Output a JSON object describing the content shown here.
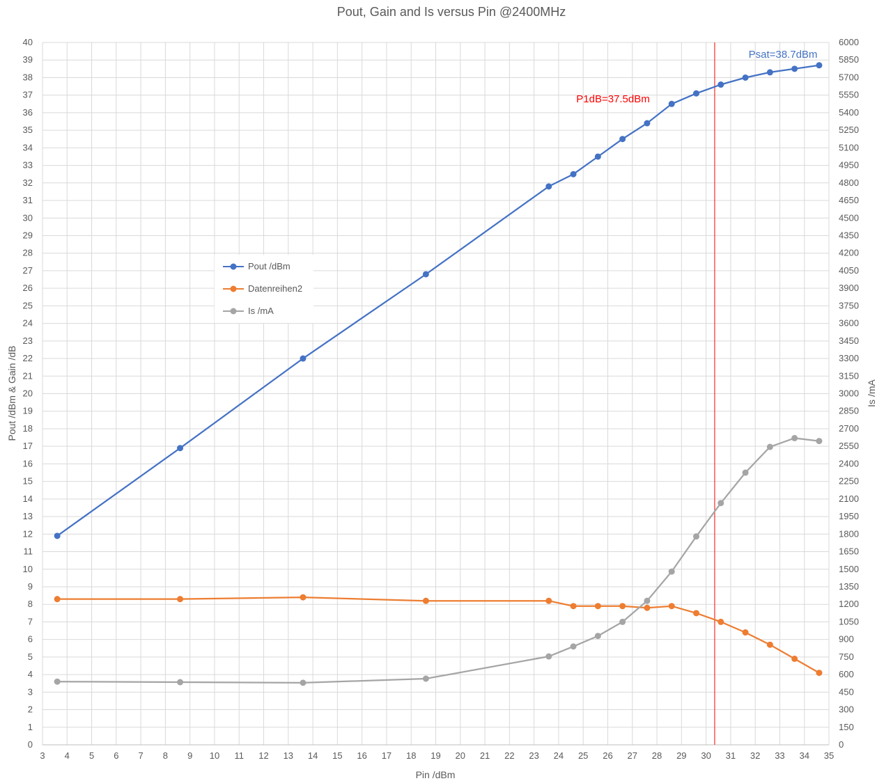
{
  "chart_data": {
    "type": "line",
    "title": "Pout, Gain and Is versus Pin @2400MHz",
    "xlabel": "Pin /dBm",
    "ylabel": "Pout /dBm & Gain /dB",
    "y2label": "Is /mA",
    "xlim": [
      3,
      35
    ],
    "ylim": [
      0,
      40
    ],
    "y2lim": [
      0,
      6000
    ],
    "x_ticks": [
      "3",
      "4",
      "5",
      "6",
      "7",
      "8",
      "9",
      "10",
      "11",
      "12",
      "13",
      "14",
      "15",
      "16",
      "17",
      "18",
      "19",
      "20",
      "21",
      "22",
      "23",
      "24",
      "25",
      "26",
      "27",
      "28",
      "29",
      "30",
      "31",
      "32",
      "33",
      "34",
      "35"
    ],
    "y_ticks": [
      "0",
      "1",
      "2",
      "3",
      "4",
      "5",
      "6",
      "7",
      "8",
      "9",
      "10",
      "11",
      "12",
      "13",
      "14",
      "15",
      "16",
      "17",
      "18",
      "19",
      "20",
      "21",
      "22",
      "23",
      "24",
      "25",
      "26",
      "27",
      "28",
      "29",
      "30",
      "31",
      "32",
      "33",
      "34",
      "35",
      "36",
      "37",
      "38",
      "39",
      "40"
    ],
    "y2_ticks": [
      "0",
      "150",
      "300",
      "450",
      "600",
      "750",
      "900",
      "1050",
      "1200",
      "1350",
      "1500",
      "1650",
      "1800",
      "1950",
      "2100",
      "2250",
      "2400",
      "2550",
      "2700",
      "2850",
      "3000",
      "3150",
      "3300",
      "3450",
      "3600",
      "3750",
      "3900",
      "4050",
      "4200",
      "4350",
      "4500",
      "4650",
      "4800",
      "4950",
      "5100",
      "5250",
      "5400",
      "5550",
      "5700",
      "5850",
      "6000"
    ],
    "grid": true,
    "legend_position": "center-left",
    "series": [
      {
        "name": "Pout /dBm",
        "color": "#4472C4",
        "axis": "left",
        "x": [
          3.6,
          8.6,
          13.6,
          18.6,
          23.6,
          24.6,
          25.6,
          26.6,
          27.6,
          28.6,
          29.6,
          30.6,
          31.6,
          32.6,
          33.6,
          34.6
        ],
        "values": [
          11.9,
          16.9,
          22.0,
          26.8,
          31.8,
          32.5,
          33.5,
          34.5,
          35.4,
          36.5,
          37.1,
          37.6,
          38.0,
          38.3,
          38.5,
          38.7
        ]
      },
      {
        "name": "Datenreihen2",
        "color": "#ED7D31",
        "axis": "left",
        "x": [
          3.6,
          8.6,
          13.6,
          18.6,
          23.6,
          24.6,
          25.6,
          26.6,
          27.6,
          28.6,
          29.6,
          30.6,
          31.6,
          32.6,
          33.6,
          34.6
        ],
        "values": [
          8.3,
          8.3,
          8.4,
          8.2,
          8.2,
          7.9,
          7.9,
          7.9,
          7.8,
          7.9,
          7.5,
          7.0,
          6.4,
          5.7,
          4.9,
          4.1
        ]
      },
      {
        "name": "Is /mA",
        "color": "#A5A5A5",
        "axis": "right",
        "x": [
          3.6,
          8.6,
          13.6,
          18.6,
          23.6,
          24.6,
          25.6,
          26.6,
          27.6,
          28.6,
          29.6,
          30.6,
          31.6,
          32.6,
          33.6,
          34.6
        ],
        "values": [
          540,
          535,
          530,
          565,
          755,
          840,
          930,
          1050,
          1230,
          1480,
          1780,
          2065,
          2325,
          2545,
          2620,
          2595
        ]
      }
    ],
    "vertical_line": {
      "x": 30.35,
      "color": "#FF0000"
    },
    "annotations": [
      {
        "text": "P1dB=37.5dBm",
        "color": "#FF0000"
      },
      {
        "text": "Psat=38.7dBm",
        "color": "#4472C4"
      }
    ]
  }
}
